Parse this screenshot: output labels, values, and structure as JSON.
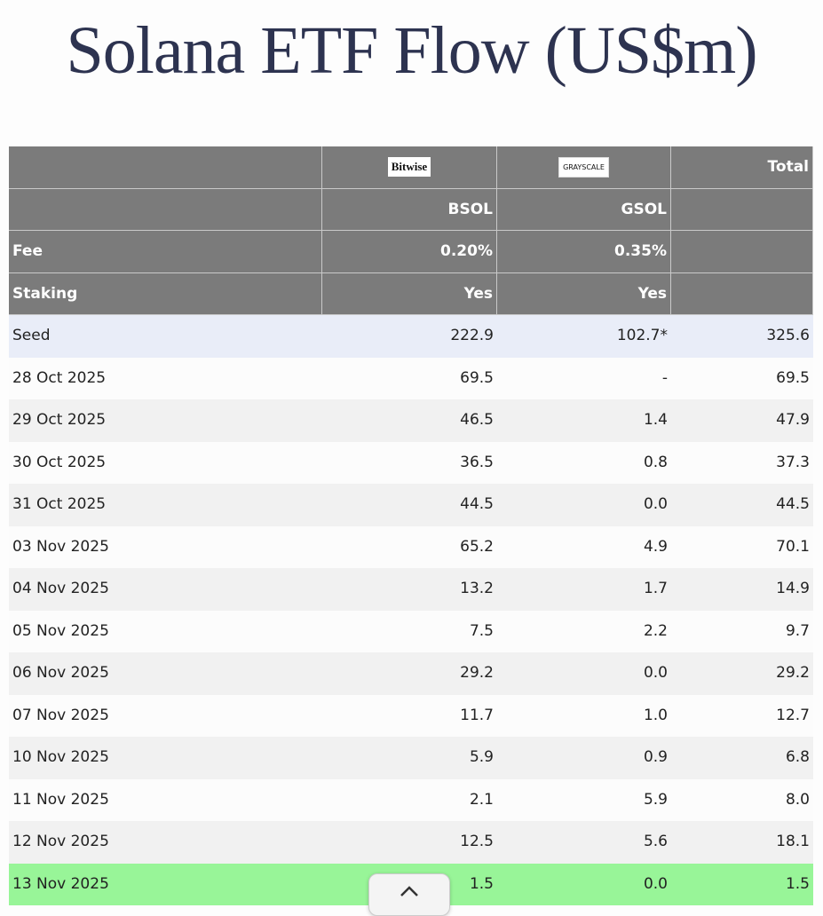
{
  "header": {
    "title": "Solana ETF Flow (US$m)"
  },
  "table": {
    "logos": [
      "Bitwise",
      "GRAYSCALE"
    ],
    "total": "Total",
    "tickers": [
      "BSOL",
      "GSOL"
    ],
    "fee": {
      "label": "Fee",
      "values": [
        "0.20%",
        "0.35%"
      ]
    },
    "staking": {
      "label": "Staking",
      "values": [
        "Yes",
        "Yes"
      ]
    },
    "rows": [
      [
        "Seed",
        "222.9",
        "102.7*",
        "325.6"
      ],
      [
        "28 Oct 2025",
        "69.5",
        "-",
        "69.5"
      ],
      [
        "29 Oct 2025",
        "46.5",
        "1.4",
        "47.9"
      ],
      [
        "30 Oct 2025",
        "36.5",
        "0.8",
        "37.3"
      ],
      [
        "31 Oct 2025",
        "44.5",
        "0.0",
        "44.5"
      ],
      [
        "03 Nov 2025",
        "65.2",
        "4.9",
        "70.1"
      ],
      [
        "04 Nov 2025",
        "13.2",
        "1.7",
        "14.9"
      ],
      [
        "05 Nov 2025",
        "7.5",
        "2.2",
        "9.7"
      ],
      [
        "06 Nov 2025",
        "29.2",
        "0.0",
        "29.2"
      ],
      [
        "07 Nov 2025",
        "11.7",
        "1.0",
        "12.7"
      ],
      [
        "10 Nov 2025",
        "5.9",
        "0.9",
        "6.8"
      ],
      [
        "11 Nov 2025",
        "2.1",
        "5.9",
        "8.0"
      ],
      [
        "12 Nov 2025",
        "12.5",
        "5.6",
        "18.1"
      ],
      [
        "13 Nov 2025",
        "1.5",
        "0.0",
        "1.5"
      ]
    ]
  }
}
